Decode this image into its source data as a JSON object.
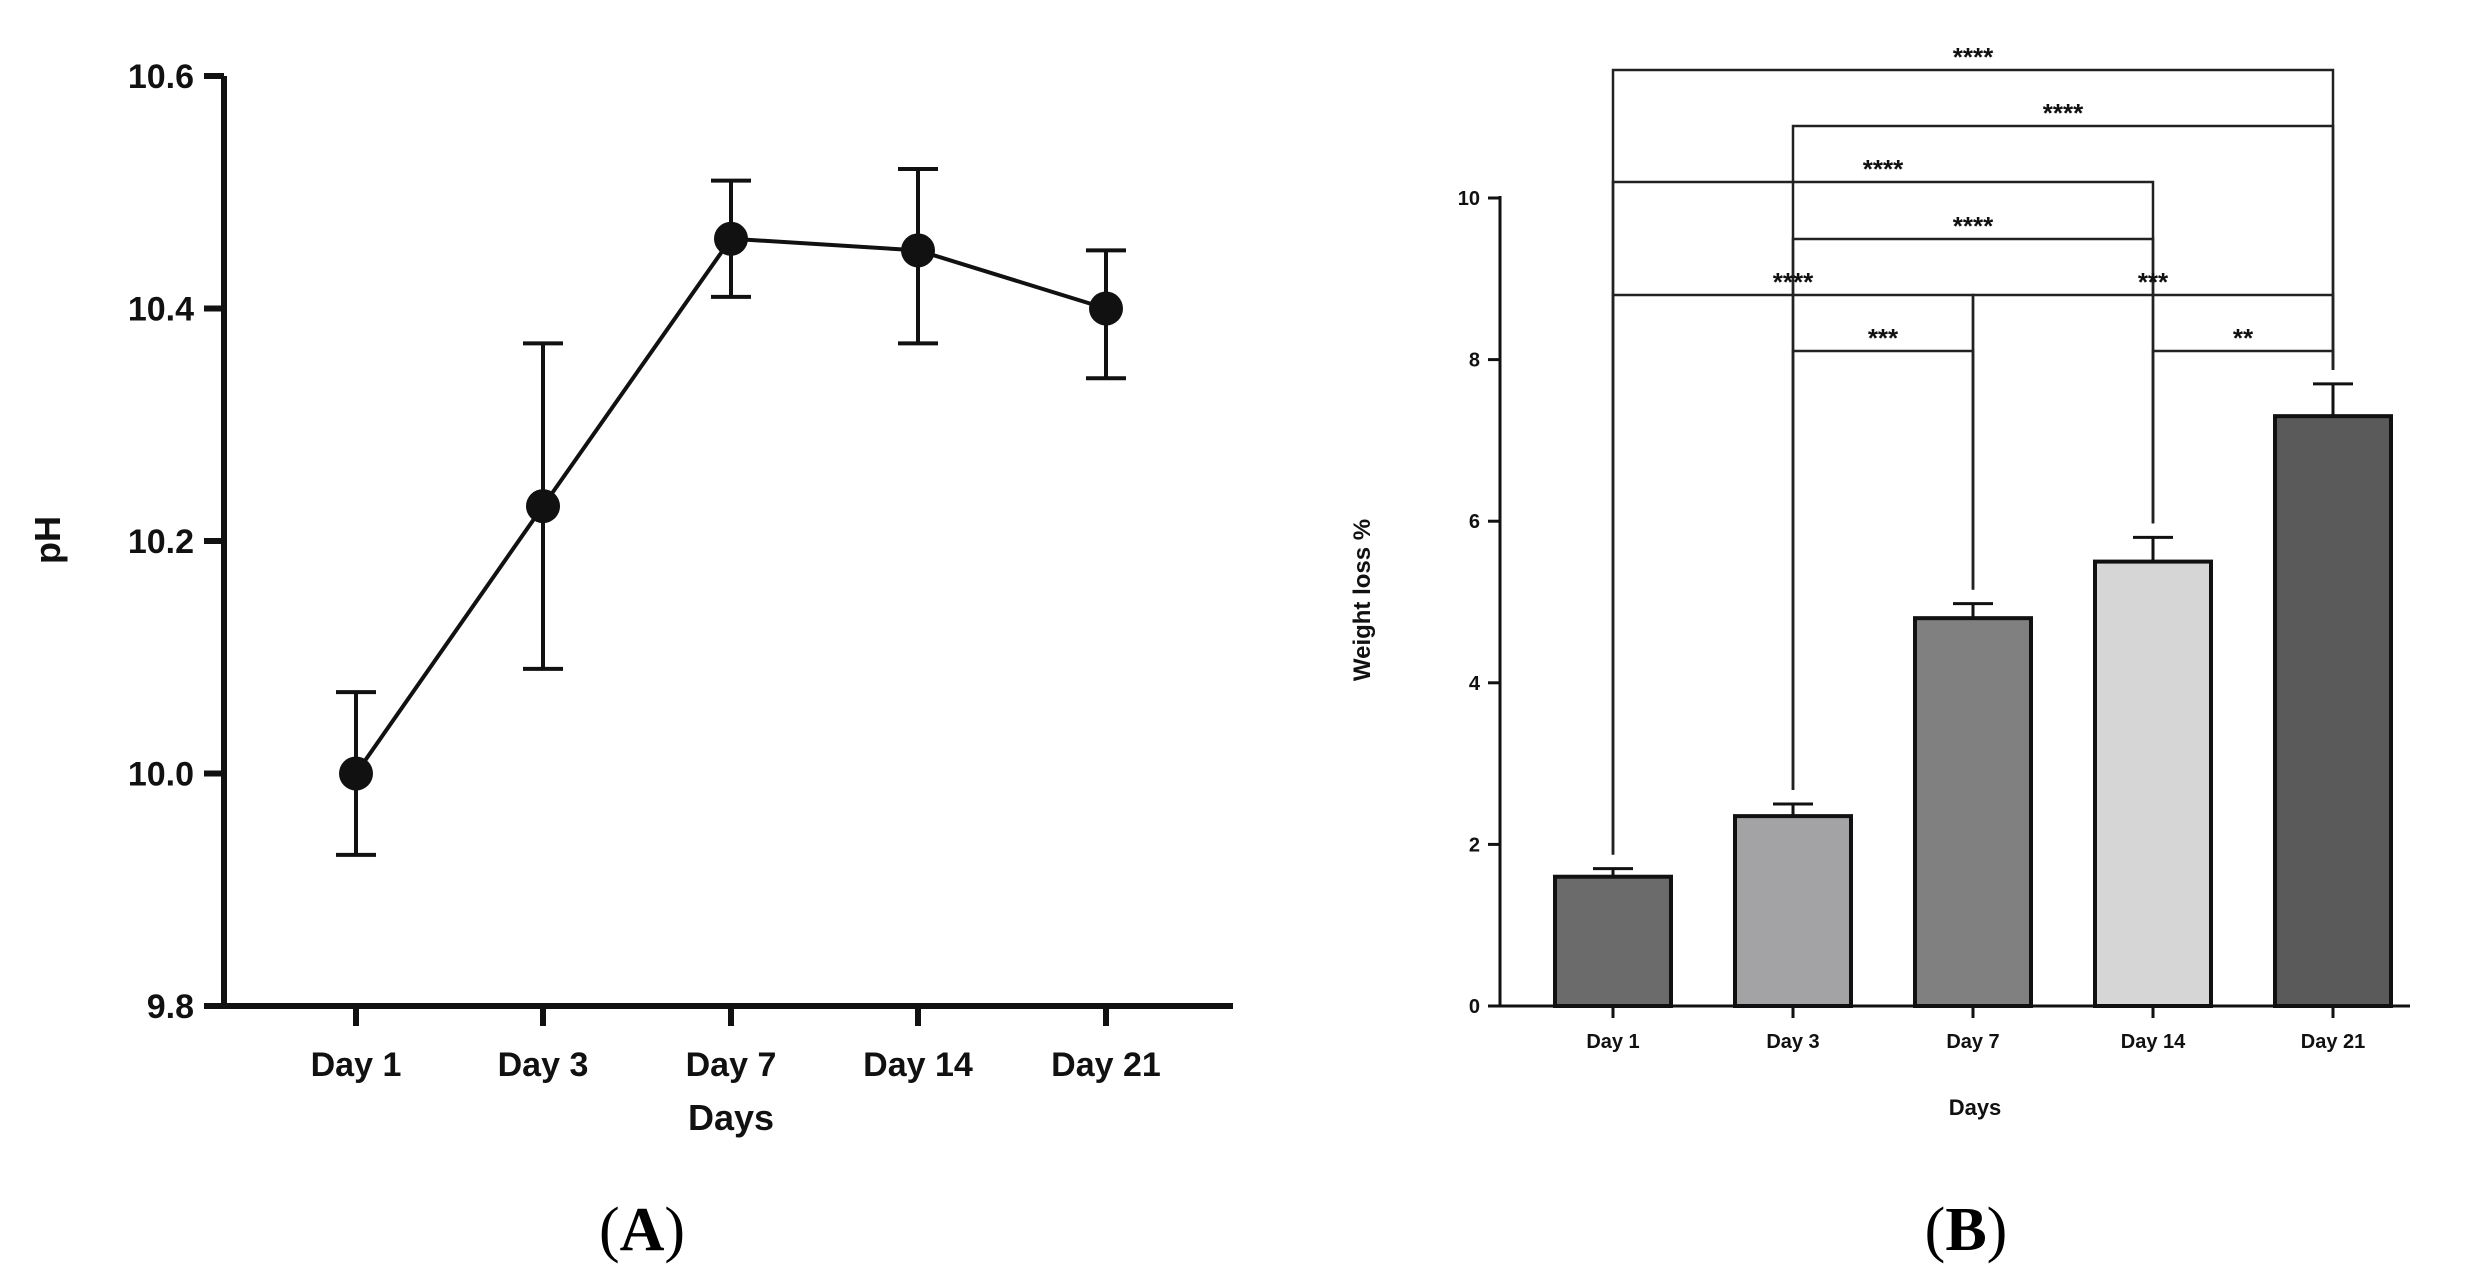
{
  "chart_data": [
    {
      "id": "A",
      "type": "line",
      "panel_label": {
        "open": "(",
        "letter": "A",
        "close": ")"
      },
      "title": "",
      "xlabel": "Days",
      "ylabel": "pH",
      "categories": [
        "Day 1",
        "Day 3",
        "Day 7",
        "Day 14",
        "Day 21"
      ],
      "ylim": [
        9.8,
        10.6
      ],
      "yticks": [
        9.8,
        10.0,
        10.2,
        10.4,
        10.6
      ],
      "ytick_labels": [
        "9.8",
        "10.0",
        "10.2",
        "10.4",
        "10.6"
      ],
      "series": [
        {
          "name": "pH",
          "values": [
            10.0,
            10.23,
            10.46,
            10.45,
            10.4
          ],
          "err_low": [
            9.93,
            10.09,
            10.41,
            10.37,
            10.34
          ],
          "err_high": [
            10.07,
            10.37,
            10.51,
            10.52,
            10.45
          ]
        }
      ],
      "grid": false,
      "colors": {
        "line": "#111111",
        "marker": "#111111"
      }
    },
    {
      "id": "B",
      "type": "bar",
      "panel_label": {
        "open": "(",
        "letter": "B",
        "close": ")"
      },
      "title": "",
      "xlabel": "Days",
      "ylabel": "Weight loss %",
      "categories": [
        "Day 1",
        "Day 3",
        "Day 7",
        "Day 14",
        "Day 21"
      ],
      "ylim": [
        0,
        10
      ],
      "yticks": [
        0,
        2,
        4,
        6,
        8,
        10
      ],
      "ytick_labels": [
        "0",
        "2",
        "4",
        "6",
        "8",
        "10"
      ],
      "series": [
        {
          "name": "Weight loss %",
          "values": [
            1.6,
            2.35,
            4.8,
            5.5,
            7.3
          ],
          "err_high": [
            1.7,
            2.5,
            4.98,
            5.8,
            7.7
          ],
          "colors": [
            "#6b6b6b",
            "#a3a3a6",
            "#808080",
            "#d6d6d6",
            "#5a5a5a"
          ]
        }
      ],
      "significance": [
        {
          "from": 0,
          "to": 4,
          "label": "****",
          "level": 0
        },
        {
          "from": 1,
          "to": 4,
          "label": "****",
          "level": 1
        },
        {
          "from": 0,
          "to": 3,
          "label": "****",
          "level": 2
        },
        {
          "from": 1,
          "to": 3,
          "label": "****",
          "level": 3
        },
        {
          "from": 0,
          "to": 2,
          "label": "****",
          "level": 4
        },
        {
          "from": 2,
          "to": 4,
          "label": "***",
          "level": 4
        },
        {
          "from": 1,
          "to": 2,
          "label": "***",
          "level": 5
        },
        {
          "from": 3,
          "to": 4,
          "label": "**",
          "level": 5
        }
      ],
      "grid": false
    }
  ]
}
